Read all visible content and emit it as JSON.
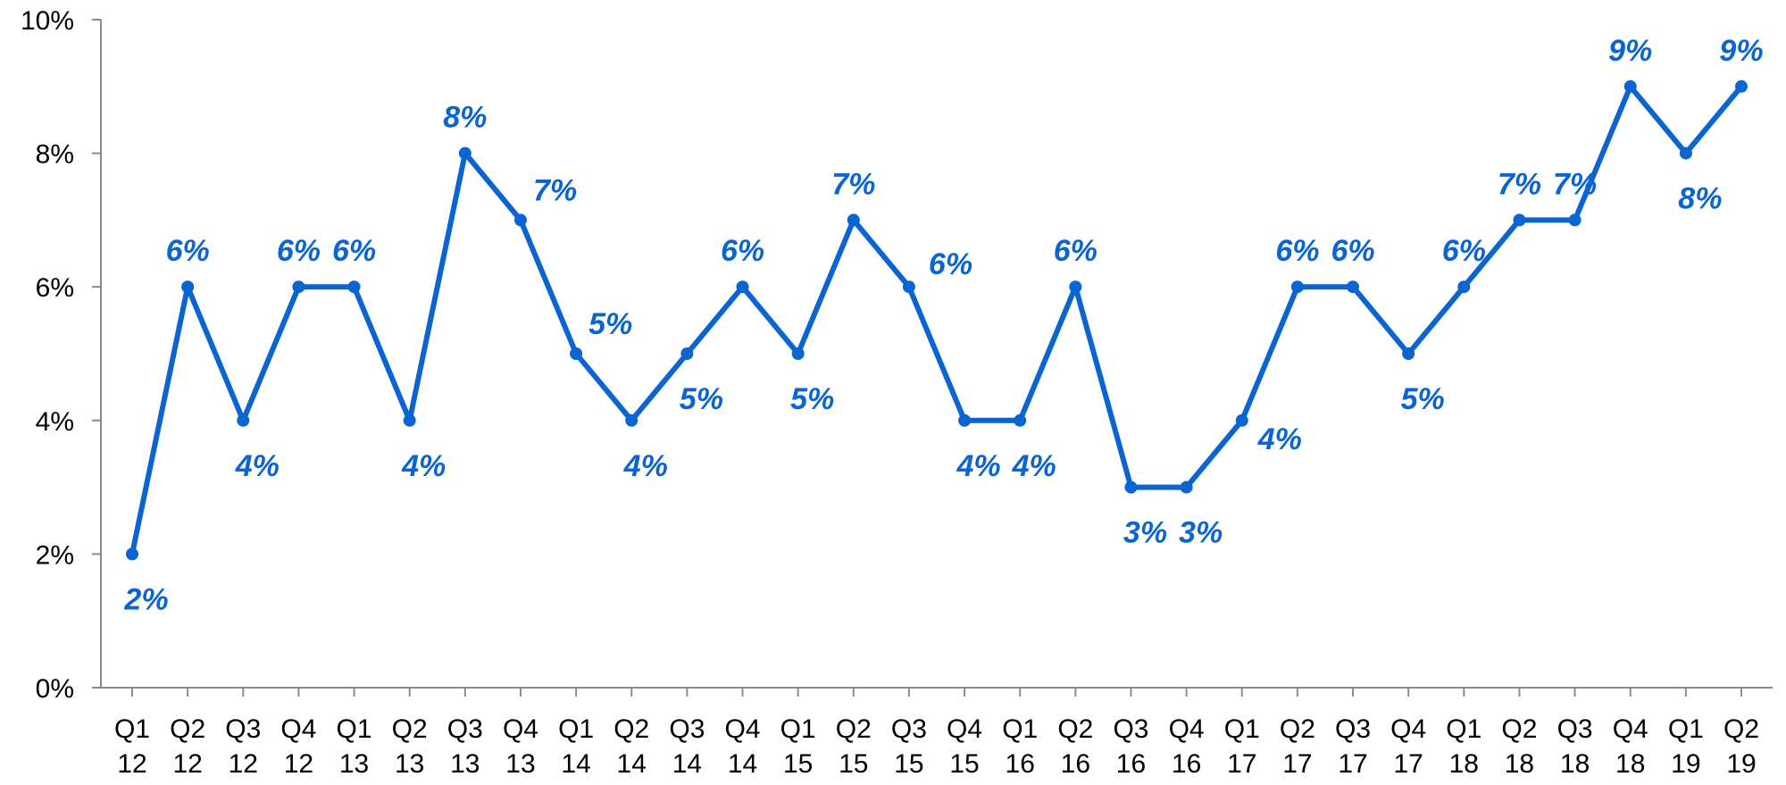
{
  "chart_data": {
    "type": "line",
    "title": "",
    "xlabel": "",
    "ylabel": "",
    "ylim": [
      0,
      10
    ],
    "y_ticks": [
      "0%",
      "2%",
      "4%",
      "6%",
      "8%",
      "10%"
    ],
    "y_tick_values": [
      0,
      2,
      4,
      6,
      8,
      10
    ],
    "grid": false,
    "legend": "none",
    "categories": [
      [
        "Q1",
        "12"
      ],
      [
        "Q2",
        "12"
      ],
      [
        "Q3",
        "12"
      ],
      [
        "Q4",
        "12"
      ],
      [
        "Q1",
        "13"
      ],
      [
        "Q2",
        "13"
      ],
      [
        "Q3",
        "13"
      ],
      [
        "Q4",
        "13"
      ],
      [
        "Q1",
        "14"
      ],
      [
        "Q2",
        "14"
      ],
      [
        "Q3",
        "14"
      ],
      [
        "Q4",
        "14"
      ],
      [
        "Q1",
        "15"
      ],
      [
        "Q2",
        "15"
      ],
      [
        "Q3",
        "15"
      ],
      [
        "Q4",
        "15"
      ],
      [
        "Q1",
        "16"
      ],
      [
        "Q2",
        "16"
      ],
      [
        "Q3",
        "16"
      ],
      [
        "Q4",
        "16"
      ],
      [
        "Q1",
        "17"
      ],
      [
        "Q2",
        "17"
      ],
      [
        "Q3",
        "17"
      ],
      [
        "Q4",
        "17"
      ],
      [
        "Q1",
        "18"
      ],
      [
        "Q2",
        "18"
      ],
      [
        "Q3",
        "18"
      ],
      [
        "Q4",
        "18"
      ],
      [
        "Q1",
        "19"
      ],
      [
        "Q2",
        "19"
      ]
    ],
    "series": [
      {
        "values": [
          2,
          6,
          4,
          6,
          6,
          4,
          8,
          7,
          5,
          4,
          5,
          6,
          5,
          7,
          6,
          4,
          4,
          6,
          3,
          3,
          4,
          6,
          6,
          5,
          6,
          7,
          7,
          9,
          8,
          9
        ],
        "labels": [
          "2%",
          "6%",
          "4%",
          "6%",
          "6%",
          "4%",
          "8%",
          "7%",
          "5%",
          "4%",
          "5%",
          "6%",
          "5%",
          "7%",
          "6%",
          "4%",
          "4%",
          "6%",
          "3%",
          "3%",
          "4%",
          "6%",
          "6%",
          "5%",
          "6%",
          "7%",
          "7%",
          "9%",
          "8%",
          "9%"
        ],
        "label_positions": [
          "below",
          "above",
          "below",
          "above",
          "above",
          "below",
          "above",
          "above-right",
          "above-right",
          "below",
          "below",
          "above",
          "below",
          "above",
          "right",
          "below",
          "below",
          "above",
          "below",
          "below",
          "below-right",
          "above",
          "above",
          "below",
          "above",
          "above",
          "above",
          "above",
          "below",
          "above"
        ]
      }
    ],
    "colors": {
      "series": "#0a64d2",
      "label": "#0a64d2",
      "axis": "#8c8c8c",
      "text": "#000000"
    }
  }
}
